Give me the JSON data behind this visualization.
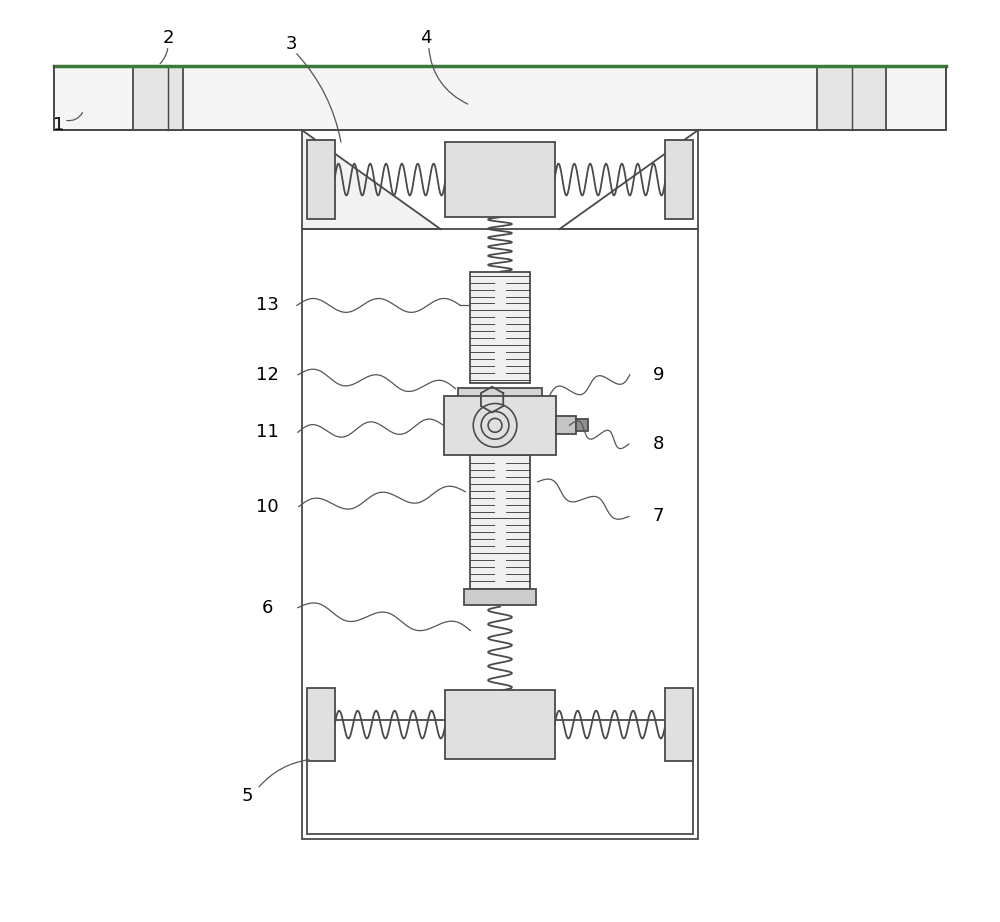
{
  "bg_color": "#ffffff",
  "line_color": "#4a4a4a",
  "line_width": 1.3,
  "fig_width": 10.0,
  "fig_height": 9.22,
  "bar_color": "#f8f8f8",
  "bar_green_color": "#5a8a5a",
  "gray_light": "#e8e8e8",
  "gray_mid": "#d0d0d0"
}
